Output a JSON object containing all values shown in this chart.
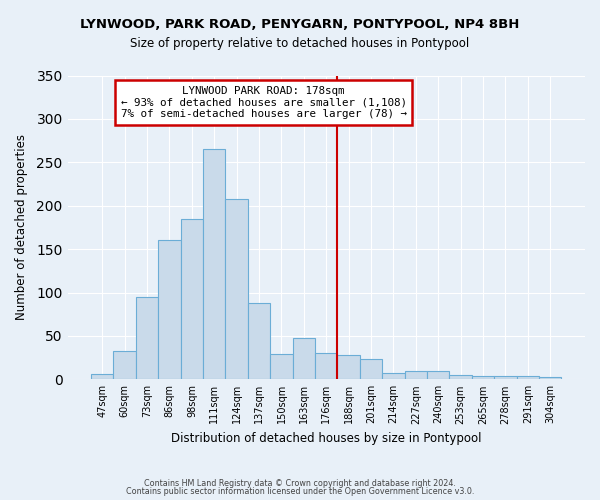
{
  "title": "LYNWOOD, PARK ROAD, PENYGARN, PONTYPOOL, NP4 8BH",
  "subtitle": "Size of property relative to detached houses in Pontypool",
  "xlabel": "Distribution of detached houses by size in Pontypool",
  "ylabel": "Number of detached properties",
  "bar_labels": [
    "47sqm",
    "60sqm",
    "73sqm",
    "86sqm",
    "98sqm",
    "111sqm",
    "124sqm",
    "137sqm",
    "150sqm",
    "163sqm",
    "176sqm",
    "188sqm",
    "201sqm",
    "214sqm",
    "227sqm",
    "240sqm",
    "253sqm",
    "265sqm",
    "278sqm",
    "291sqm",
    "304sqm"
  ],
  "bar_values": [
    6,
    33,
    95,
    160,
    185,
    265,
    208,
    88,
    29,
    48,
    30,
    28,
    23,
    7,
    10,
    10,
    5,
    4,
    4,
    4,
    3
  ],
  "bar_color": "#c9daea",
  "bar_edge_color": "#6badd6",
  "vline_x_idx": 10.5,
  "vline_color": "#cc0000",
  "annotation_title": "LYNWOOD PARK ROAD: 178sqm",
  "annotation_line1": "← 93% of detached houses are smaller (1,108)",
  "annotation_line2": "7% of semi-detached houses are larger (78) →",
  "annotation_box_color": "#cc0000",
  "ylim": [
    0,
    350
  ],
  "yticks": [
    0,
    50,
    100,
    150,
    200,
    250,
    300,
    350
  ],
  "bg_color": "#e8f0f8",
  "footer1": "Contains HM Land Registry data © Crown copyright and database right 2024.",
  "footer2": "Contains public sector information licensed under the Open Government Licence v3.0."
}
